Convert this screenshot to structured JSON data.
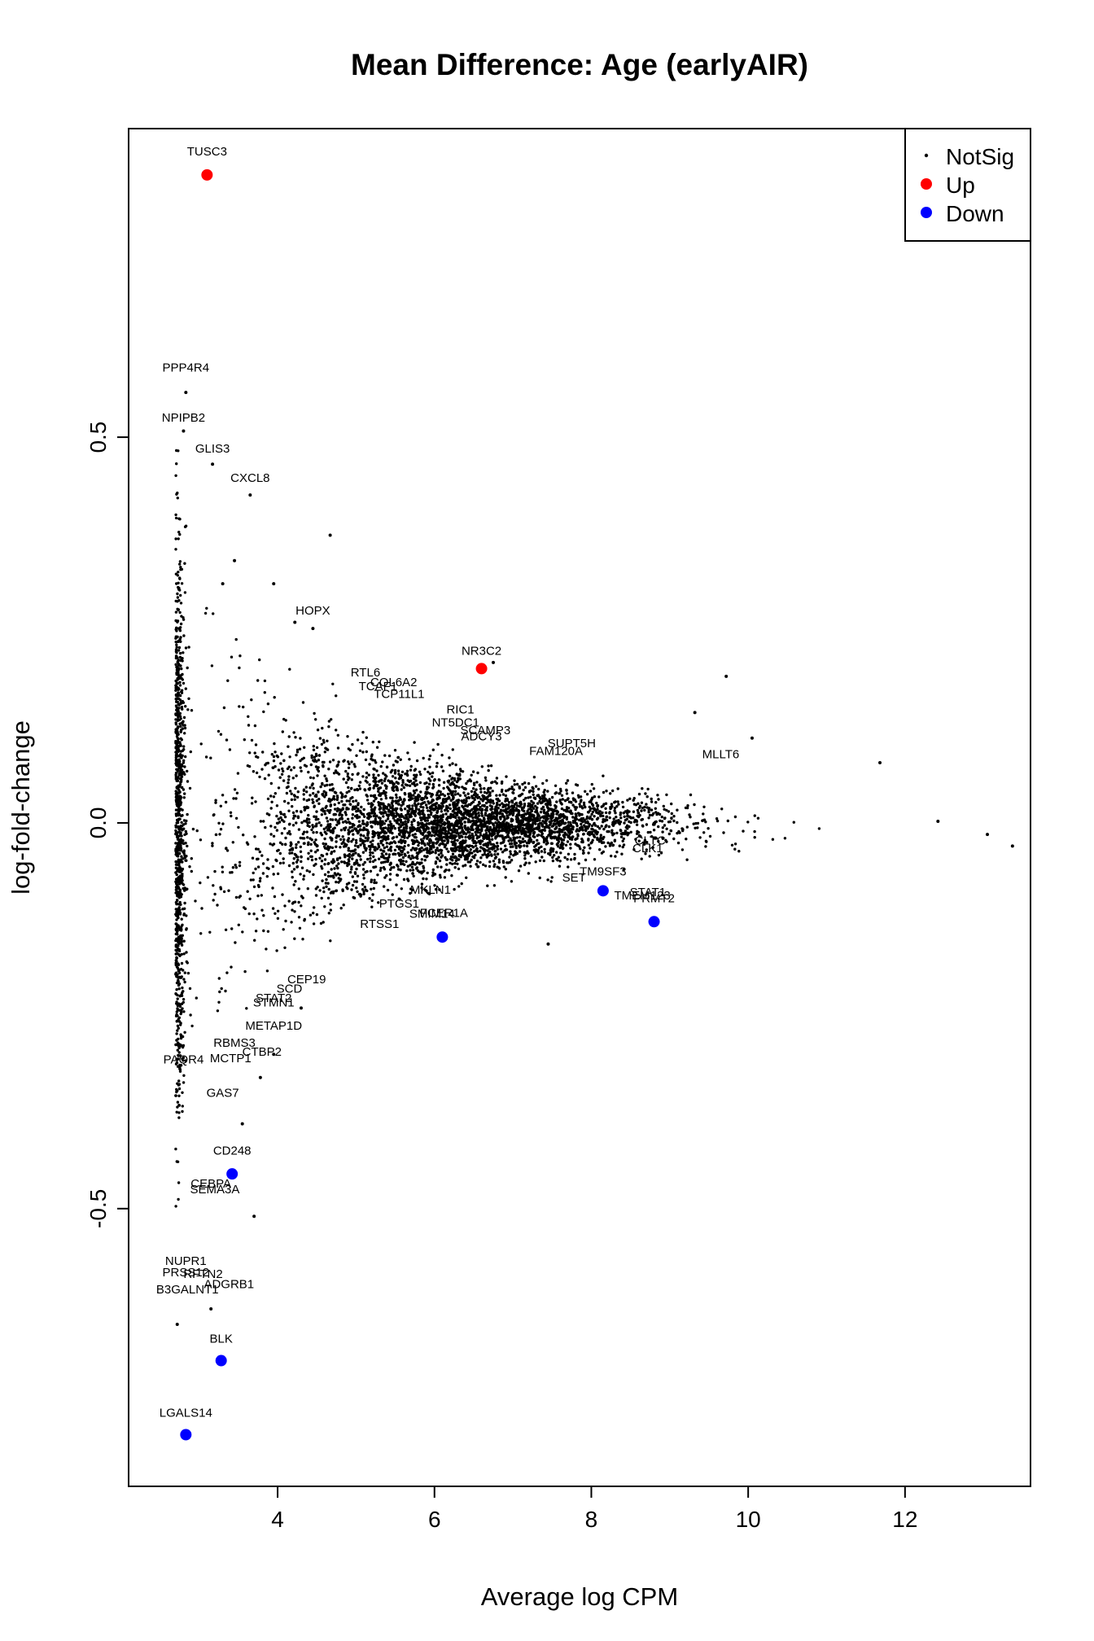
{
  "chart_data": {
    "type": "scatter",
    "title": "Mean Difference: Age (earlyAIR)",
    "xlabel": "Average log CPM",
    "ylabel": "log-fold-change",
    "xlim": [
      2.1,
      13.6
    ],
    "ylim": [
      -0.86,
      0.9
    ],
    "xticks": [
      {
        "value": 4,
        "label": "4"
      },
      {
        "value": 6,
        "label": "6"
      },
      {
        "value": 8,
        "label": "8"
      },
      {
        "value": 10,
        "label": "10"
      },
      {
        "value": 12,
        "label": "12"
      }
    ],
    "yticks": [
      {
        "value": -0.5,
        "label": "-0.5"
      },
      {
        "value": 0,
        "label": "0.0"
      },
      {
        "value": 0.5,
        "label": "0.5"
      }
    ],
    "grid": false,
    "legend": {
      "position": "top-right",
      "entries": [
        {
          "label": "NotSig",
          "color": "#000000",
          "marker": "small-dot"
        },
        {
          "label": "Up",
          "color": "#ff0000",
          "marker": "dot"
        },
        {
          "label": "Down",
          "color": "#0000ff",
          "marker": "dot"
        }
      ]
    },
    "series": [
      {
        "name": "Up",
        "color": "#ff0000",
        "points": [
          {
            "x": 3.1,
            "y": 0.84
          },
          {
            "x": 6.6,
            "y": 0.2
          }
        ]
      },
      {
        "name": "Down",
        "color": "#0000ff",
        "points": [
          {
            "x": 3.42,
            "y": -0.455
          },
          {
            "x": 6.1,
            "y": -0.148
          },
          {
            "x": 8.15,
            "y": -0.088
          },
          {
            "x": 8.8,
            "y": -0.128
          },
          {
            "x": 3.28,
            "y": -0.697
          },
          {
            "x": 2.83,
            "y": -0.793
          }
        ]
      },
      {
        "name": "NotSig",
        "color": "#000000",
        "points": [
          {
            "x": 2.83,
            "y": 0.558
          },
          {
            "x": 2.8,
            "y": 0.508
          },
          {
            "x": 3.17,
            "y": 0.465
          },
          {
            "x": 3.65,
            "y": 0.425
          },
          {
            "x": 4.67,
            "y": 0.373
          },
          {
            "x": 4.45,
            "y": 0.252
          },
          {
            "x": 4.22,
            "y": 0.26
          },
          {
            "x": 6.75,
            "y": 0.208
          },
          {
            "x": 9.72,
            "y": 0.19
          },
          {
            "x": 9.32,
            "y": 0.143
          },
          {
            "x": 10.05,
            "y": 0.11
          },
          {
            "x": 11.68,
            "y": 0.078
          },
          {
            "x": 12.42,
            "y": 0.002
          },
          {
            "x": 13.05,
            "y": -0.015
          },
          {
            "x": 13.37,
            "y": -0.03
          },
          {
            "x": 7.45,
            "y": -0.157
          },
          {
            "x": 3.7,
            "y": -0.51
          },
          {
            "x": 3.15,
            "y": -0.63
          },
          {
            "x": 2.72,
            "y": -0.65
          },
          {
            "x": 3.55,
            "y": -0.39
          },
          {
            "x": 3.95,
            "y": -0.3
          },
          {
            "x": 3.78,
            "y": -0.33
          },
          {
            "x": 4.3,
            "y": -0.24
          },
          {
            "x": 3.3,
            "y": 0.31
          },
          {
            "x": 3.45,
            "y": 0.34
          },
          {
            "x": 3.95,
            "y": 0.31
          }
        ],
        "cloud": {
          "description": "dense cloud of non-significant genes",
          "count": 5200,
          "x_range": [
            2.7,
            13.4
          ],
          "center_x": 6.2,
          "y_center": 0.0
        }
      }
    ],
    "annotations": [
      {
        "text": "TUSC3",
        "x": 3.1,
        "y": 0.865
      },
      {
        "text": "PPP4R4",
        "x": 2.83,
        "y": 0.585
      },
      {
        "text": "NPIPB2",
        "x": 2.8,
        "y": 0.52
      },
      {
        "text": "GLIS3",
        "x": 3.17,
        "y": 0.48
      },
      {
        "text": "CXCL8",
        "x": 3.65,
        "y": 0.442
      },
      {
        "text": "HOPX",
        "x": 4.45,
        "y": 0.27
      },
      {
        "text": "NR3C2",
        "x": 6.6,
        "y": 0.218
      },
      {
        "text": "RTL6",
        "x": 5.12,
        "y": 0.19
      },
      {
        "text": "COL6A2",
        "x": 5.48,
        "y": 0.177
      },
      {
        "text": "TCAF1",
        "x": 5.28,
        "y": 0.172
      },
      {
        "text": "TCP11L1",
        "x": 5.55,
        "y": 0.162
      },
      {
        "text": "RIC1",
        "x": 6.33,
        "y": 0.142
      },
      {
        "text": "NT5DC1",
        "x": 6.27,
        "y": 0.125
      },
      {
        "text": "SCAMP3",
        "x": 6.65,
        "y": 0.115
      },
      {
        "text": "ADCY3",
        "x": 6.6,
        "y": 0.107
      },
      {
        "text": "SUPT5H",
        "x": 7.75,
        "y": 0.098
      },
      {
        "text": "FAM120A",
        "x": 7.55,
        "y": 0.088
      },
      {
        "text": "MLLT6",
        "x": 9.65,
        "y": 0.084
      },
      {
        "text": "CLTC",
        "x": 8.75,
        "y": -0.028
      },
      {
        "text": "CLK1",
        "x": 8.72,
        "y": -0.038
      },
      {
        "text": "TM9SF3",
        "x": 8.15,
        "y": -0.068
      },
      {
        "text": "SET",
        "x": 7.78,
        "y": -0.076
      },
      {
        "text": "STAT1",
        "x": 8.72,
        "y": -0.095
      },
      {
        "text": "TMEM123",
        "x": 8.65,
        "y": -0.099
      },
      {
        "text": "PRMT2",
        "x": 8.8,
        "y": -0.103
      },
      {
        "text": "MKLN1",
        "x": 5.95,
        "y": -0.092
      },
      {
        "text": "PTGS1",
        "x": 5.55,
        "y": -0.11
      },
      {
        "text": "SMIM14",
        "x": 5.97,
        "y": -0.123
      },
      {
        "text": "FCER1A",
        "x": 6.12,
        "y": -0.122
      },
      {
        "text": "RTSS1",
        "x": 5.3,
        "y": -0.136
      },
      {
        "text": "CEP19",
        "x": 4.37,
        "y": -0.208
      },
      {
        "text": "SCD",
        "x": 4.15,
        "y": -0.22
      },
      {
        "text": "STAT2",
        "x": 3.95,
        "y": -0.232
      },
      {
        "text": "STMN1",
        "x": 3.95,
        "y": -0.238
      },
      {
        "text": "METAP1D",
        "x": 3.95,
        "y": -0.268
      },
      {
        "text": "RBMS3",
        "x": 3.45,
        "y": -0.29
      },
      {
        "text": "CTBP2",
        "x": 3.8,
        "y": -0.302
      },
      {
        "text": "PAQR4",
        "x": 2.8,
        "y": -0.312
      },
      {
        "text": "MCTP1",
        "x": 3.4,
        "y": -0.31
      },
      {
        "text": "GAS7",
        "x": 3.3,
        "y": -0.355
      },
      {
        "text": "CD248",
        "x": 3.42,
        "y": -0.43
      },
      {
        "text": "CEBPA",
        "x": 3.15,
        "y": -0.473
      },
      {
        "text": "SEMA3A",
        "x": 3.2,
        "y": -0.48
      },
      {
        "text": "NUPR1",
        "x": 2.83,
        "y": -0.573
      },
      {
        "text": "PRSS12",
        "x": 2.83,
        "y": -0.588
      },
      {
        "text": "RFTN2",
        "x": 3.05,
        "y": -0.59
      },
      {
        "text": "ADGRB1",
        "x": 3.38,
        "y": -0.603
      },
      {
        "text": "B3GALNT1",
        "x": 2.85,
        "y": -0.61
      },
      {
        "text": "BLK",
        "x": 3.28,
        "y": -0.674
      },
      {
        "text": "LGALS14",
        "x": 2.83,
        "y": -0.77
      }
    ]
  }
}
